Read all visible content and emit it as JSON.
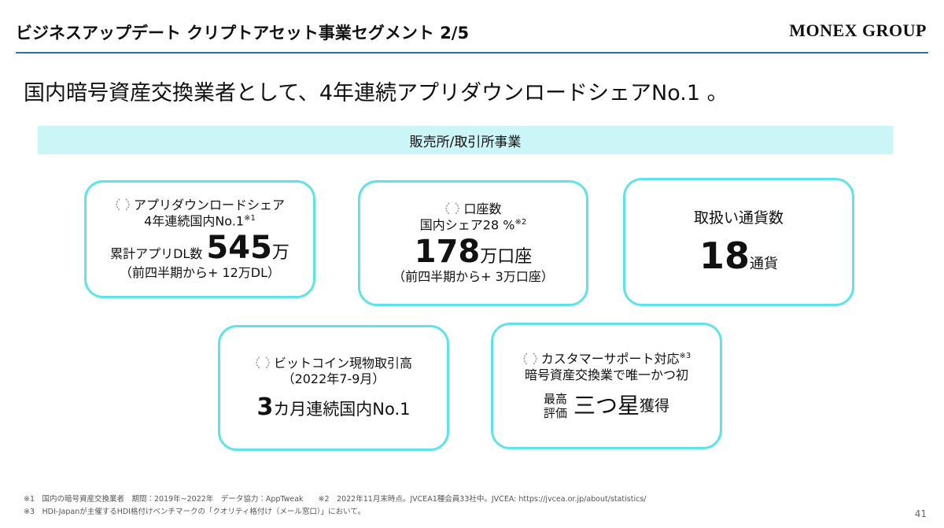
{
  "header": {
    "title": "ビジネスアップデート クリプトアセット事業セグメント 2/5",
    "logo": "MONEX GROUP"
  },
  "headline": "国内暗号資産交換業者として、4年連続アプリダウンロードシェアNo.1 。",
  "banner": "販売所/取引所事業",
  "cards": [
    {
      "heading": "アプリダウンロードシェア",
      "subheading": "4年連続国内No.1",
      "note": "※1",
      "prefix": "累計アプリDL数",
      "figure": "545",
      "unit": "万",
      "change": "（前四半期から+ 12万DL）"
    },
    {
      "heading": "口座数",
      "subheading": "国内シェア28 %",
      "note": "※2",
      "figure": "178",
      "unit": "万口座",
      "change": "（前四半期から+ 3万口座）"
    },
    {
      "heading": "取扱い通貨数",
      "figure": "18",
      "unit": "通貨"
    },
    {
      "heading": "ビットコイン現物取引高",
      "period": "（2022年7-9月）",
      "figure": "3",
      "unit": "カ月連続国内No.1"
    },
    {
      "heading": "カスタマーサポート対応",
      "note": "※3",
      "subheading": "暗号資産交換業で唯一かつ初",
      "label_top": "最高",
      "label_bottom": "評価",
      "figure": "三つ星",
      "unit": "獲得"
    }
  ],
  "footnotes": [
    "※1　国内の暗号資産交換業者　期間：2019年~2022年　データ協力：AppTweak　　※2　2022年11月末時点。JVCEA1種会員33社中。JVCEA: https://jvcea.or.jp/about/statistics/",
    "※3　HDI-Japanが主催するHDI格付けベンチマークの「クオリティ格付け（メール窓口）」において。"
  ],
  "page_number": "41"
}
